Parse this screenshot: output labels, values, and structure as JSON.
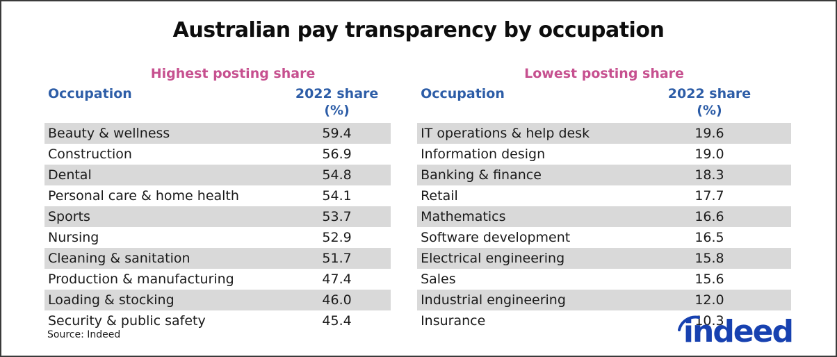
{
  "title": "Australian pay transparency by occupation",
  "source": "Source: Indeed",
  "logo": {
    "text": "indeed"
  },
  "colors": {
    "subtitle_pink": "#c6508f",
    "header_blue": "#2d5da7",
    "row_shade_gray": "#d9d9d9",
    "logo_blue": "#1741b0"
  },
  "tables": [
    {
      "subtitle": "Highest posting share",
      "col_occupation": "Occupation",
      "col_share": "2022 share (%)",
      "rows": [
        {
          "occupation": "Beauty & wellness",
          "share": "59.4"
        },
        {
          "occupation": "Construction",
          "share": "56.9"
        },
        {
          "occupation": "Dental",
          "share": "54.8"
        },
        {
          "occupation": "Personal care & home health",
          "share": "54.1"
        },
        {
          "occupation": "Sports",
          "share": "53.7"
        },
        {
          "occupation": "Nursing",
          "share": "52.9"
        },
        {
          "occupation": "Cleaning & sanitation",
          "share": "51.7"
        },
        {
          "occupation": "Production & manufacturing",
          "share": "47.4"
        },
        {
          "occupation": "Loading & stocking",
          "share": "46.0"
        },
        {
          "occupation": "Security & public safety",
          "share": "45.4"
        }
      ]
    },
    {
      "subtitle": "Lowest posting share",
      "col_occupation": "Occupation",
      "col_share": "2022 share (%)",
      "rows": [
        {
          "occupation": "IT operations & help desk",
          "share": "19.6"
        },
        {
          "occupation": "Information design",
          "share": "19.0"
        },
        {
          "occupation": "Banking & finance",
          "share": "18.3"
        },
        {
          "occupation": "Retail",
          "share": "17.7"
        },
        {
          "occupation": "Mathematics",
          "share": "16.6"
        },
        {
          "occupation": "Software development",
          "share": "16.5"
        },
        {
          "occupation": "Electrical engineering",
          "share": "15.8"
        },
        {
          "occupation": "Sales",
          "share": "15.6"
        },
        {
          "occupation": "Industrial engineering",
          "share": "12.0"
        },
        {
          "occupation": "Insurance",
          "share": "10.3"
        }
      ]
    }
  ],
  "chart_data": {
    "type": "table",
    "title": "Australian pay transparency by occupation",
    "source": "Indeed",
    "groups": [
      {
        "label": "Highest posting share",
        "columns": [
          "Occupation",
          "2022 share (%)"
        ],
        "categories": [
          "Beauty & wellness",
          "Construction",
          "Dental",
          "Personal care & home health",
          "Sports",
          "Nursing",
          "Cleaning & sanitation",
          "Production & manufacturing",
          "Loading & stocking",
          "Security & public safety"
        ],
        "values": [
          59.4,
          56.9,
          54.8,
          54.1,
          53.7,
          52.9,
          51.7,
          47.4,
          46.0,
          45.4
        ]
      },
      {
        "label": "Lowest posting share",
        "columns": [
          "Occupation",
          "2022 share (%)"
        ],
        "categories": [
          "IT operations & help desk",
          "Information design",
          "Banking & finance",
          "Retail",
          "Mathematics",
          "Software development",
          "Electrical engineering",
          "Sales",
          "Industrial engineering",
          "Insurance"
        ],
        "values": [
          19.6,
          19.0,
          18.3,
          17.7,
          16.6,
          16.5,
          15.8,
          15.6,
          12.0,
          10.3
        ]
      }
    ]
  }
}
